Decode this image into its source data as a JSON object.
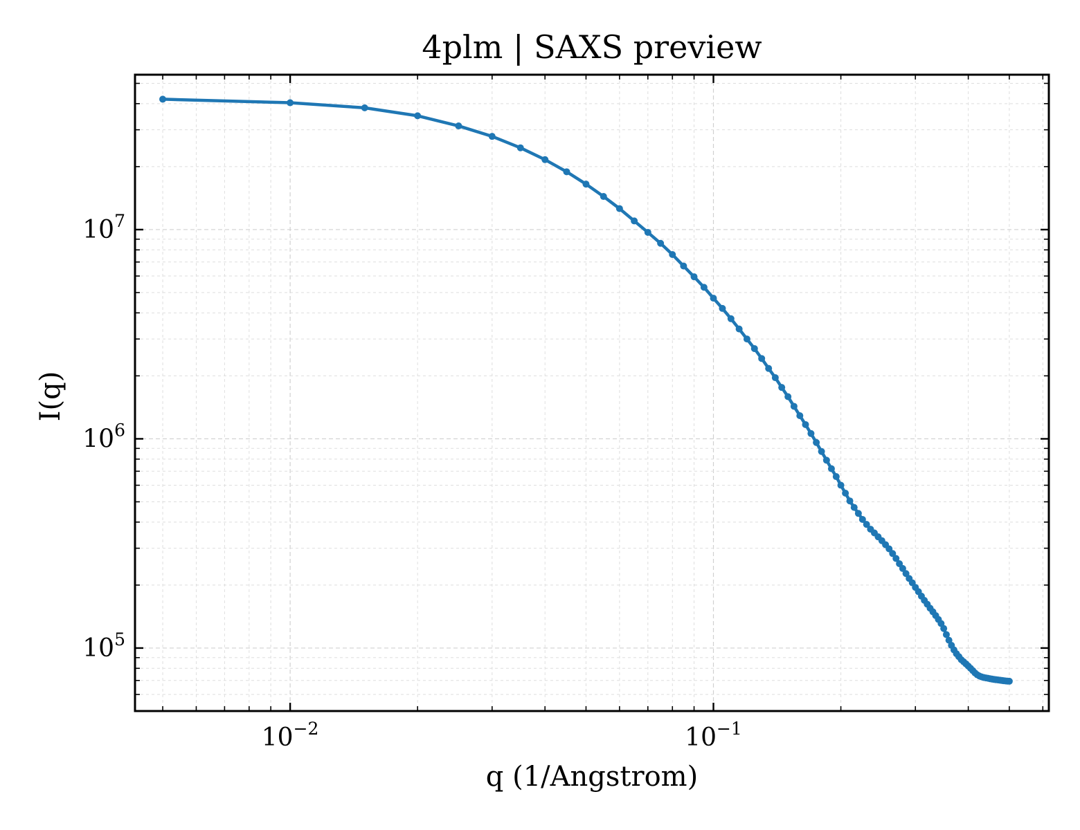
{
  "chart_data": {
    "type": "line",
    "title": "4plm | SAXS preview",
    "xlabel": "q (1/Angstrom)",
    "ylabel": "I(q)",
    "xscale": "log",
    "yscale": "log",
    "xlim": [
      0.0043,
      0.62
    ],
    "ylim": [
      50000,
      55000000
    ],
    "grid": true,
    "line_color": "#1f77b4",
    "x_ticks": [
      {
        "base": "10",
        "exp": "−2",
        "value": 0.01
      },
      {
        "base": "10",
        "exp": "−1",
        "value": 0.1
      }
    ],
    "y_ticks": [
      {
        "base": "10",
        "exp": "5",
        "value": 100000
      },
      {
        "base": "10",
        "exp": "6",
        "value": 1000000
      },
      {
        "base": "10",
        "exp": "7",
        "value": 10000000
      }
    ],
    "series": [
      {
        "x": [
          0.005,
          0.01,
          0.015,
          0.02,
          0.025,
          0.03,
          0.035,
          0.04,
          0.045,
          0.05,
          0.055,
          0.06,
          0.065,
          0.07,
          0.075,
          0.08,
          0.085,
          0.09,
          0.095,
          0.1,
          0.105,
          0.11,
          0.115,
          0.12,
          0.125,
          0.13,
          0.135,
          0.14,
          0.145,
          0.15,
          0.155,
          0.16,
          0.165,
          0.17,
          0.175,
          0.18,
          0.185,
          0.19,
          0.195,
          0.2,
          0.205,
          0.21,
          0.215,
          0.22,
          0.225,
          0.23,
          0.235,
          0.24,
          0.245,
          0.25,
          0.255,
          0.26,
          0.265,
          0.27,
          0.275,
          0.28,
          0.285,
          0.29,
          0.295,
          0.3,
          0.305,
          0.31,
          0.315,
          0.32,
          0.325,
          0.33,
          0.335,
          0.34,
          0.345,
          0.35,
          0.355,
          0.36,
          0.365,
          0.37,
          0.375,
          0.38,
          0.385,
          0.39,
          0.395,
          0.4,
          0.405,
          0.41,
          0.415,
          0.42,
          0.425,
          0.43,
          0.435,
          0.44,
          0.445,
          0.45,
          0.455,
          0.46,
          0.465,
          0.47,
          0.475,
          0.48,
          0.485,
          0.49,
          0.495,
          0.5
        ],
        "y": [
          42000000,
          40400000,
          38200000,
          35000000,
          31300000,
          27900000,
          24600000,
          21600000,
          18900000,
          16500000,
          14400000,
          12600000,
          11000000,
          9700000,
          8600000,
          7600000,
          6700000,
          5950000,
          5300000,
          4700000,
          4200000,
          3750000,
          3350000,
          3000000,
          2700000,
          2420000,
          2170000,
          1960000,
          1760000,
          1590000,
          1430000,
          1290000,
          1170000,
          1060000,
          960000,
          870000,
          790000,
          720000,
          660000,
          600000,
          550000,
          505000,
          470000,
          440000,
          412000,
          390000,
          370000,
          355000,
          340000,
          326000,
          312000,
          298000,
          283000,
          268000,
          253000,
          240000,
          227000,
          215000,
          205000,
          195000,
          186000,
          177000,
          169000,
          162000,
          155000,
          149000,
          143000,
          137000,
          131000,
          124000,
          116000,
          109000,
          103000,
          98000,
          94000,
          91000,
          88000,
          86000,
          84000,
          82000,
          80000,
          78000,
          76000,
          74500,
          73500,
          72800,
          72300,
          72000,
          71700,
          71400,
          71100,
          70800,
          70600,
          70400,
          70200,
          70000,
          69800,
          69600,
          69500,
          69400
        ]
      }
    ]
  }
}
